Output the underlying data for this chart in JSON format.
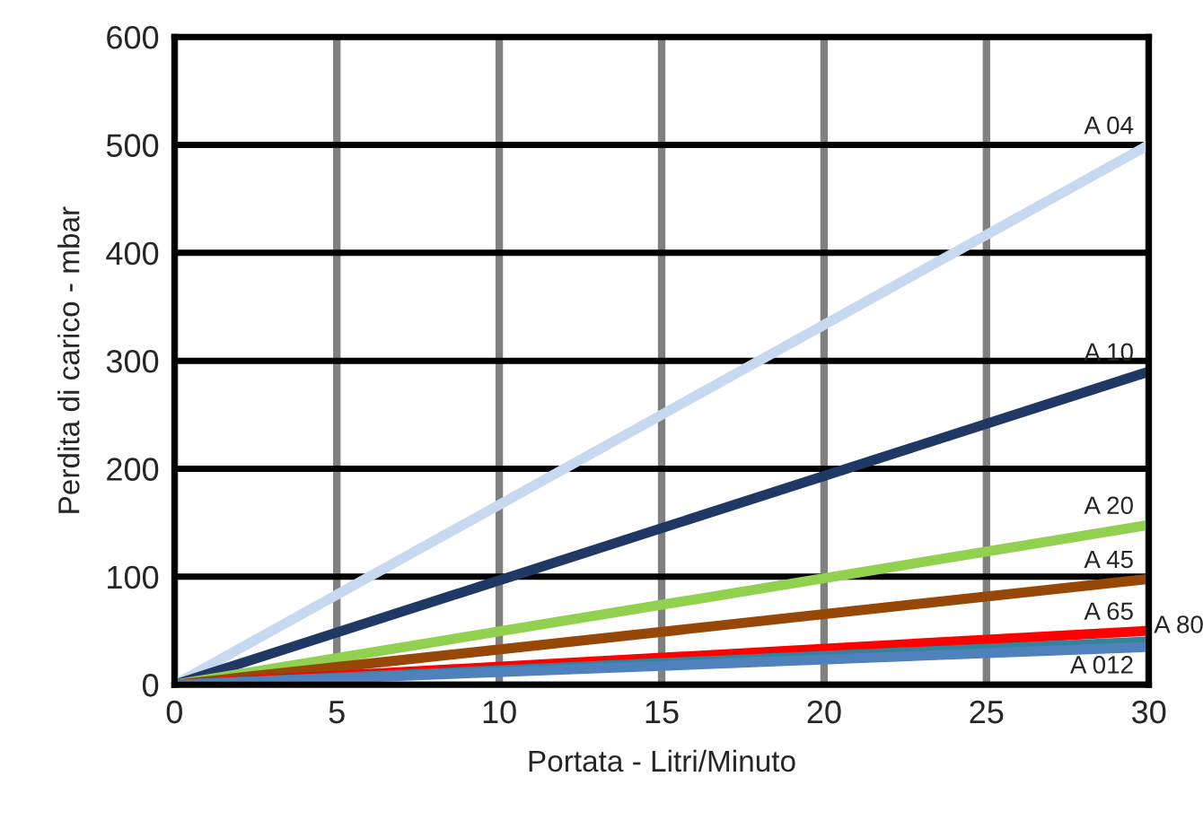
{
  "chart_data": {
    "type": "line",
    "xlabel": "Portata - Litri/Minuto",
    "ylabel": "Perdita di carico - mbar",
    "x": [
      0,
      30
    ],
    "series": [
      {
        "name": "A 04",
        "color": "#c6d9f1",
        "values": [
          0,
          500
        ]
      },
      {
        "name": "A 10",
        "color": "#1f3864",
        "values": [
          0,
          290
        ]
      },
      {
        "name": "A 20",
        "color": "#92d050",
        "values": [
          0,
          148
        ]
      },
      {
        "name": "A 45",
        "color": "#974706",
        "values": [
          0,
          98
        ]
      },
      {
        "name": "A 65",
        "color": "#ff0000",
        "values": [
          0,
          50
        ]
      },
      {
        "name": "A 80",
        "color": "#31849b",
        "values": [
          0,
          40
        ]
      },
      {
        "name": "A 012",
        "color": "#4f81bd",
        "values": [
          0,
          35
        ]
      }
    ],
    "xlim": [
      0,
      30
    ],
    "xticks": [
      0,
      5,
      10,
      15,
      20,
      25,
      30
    ],
    "ylim": [
      0,
      600
    ],
    "yticks": [
      0,
      100,
      200,
      300,
      400,
      500,
      600
    ],
    "grid": true,
    "legend": false,
    "marker": "none",
    "line_style": "solid"
  }
}
